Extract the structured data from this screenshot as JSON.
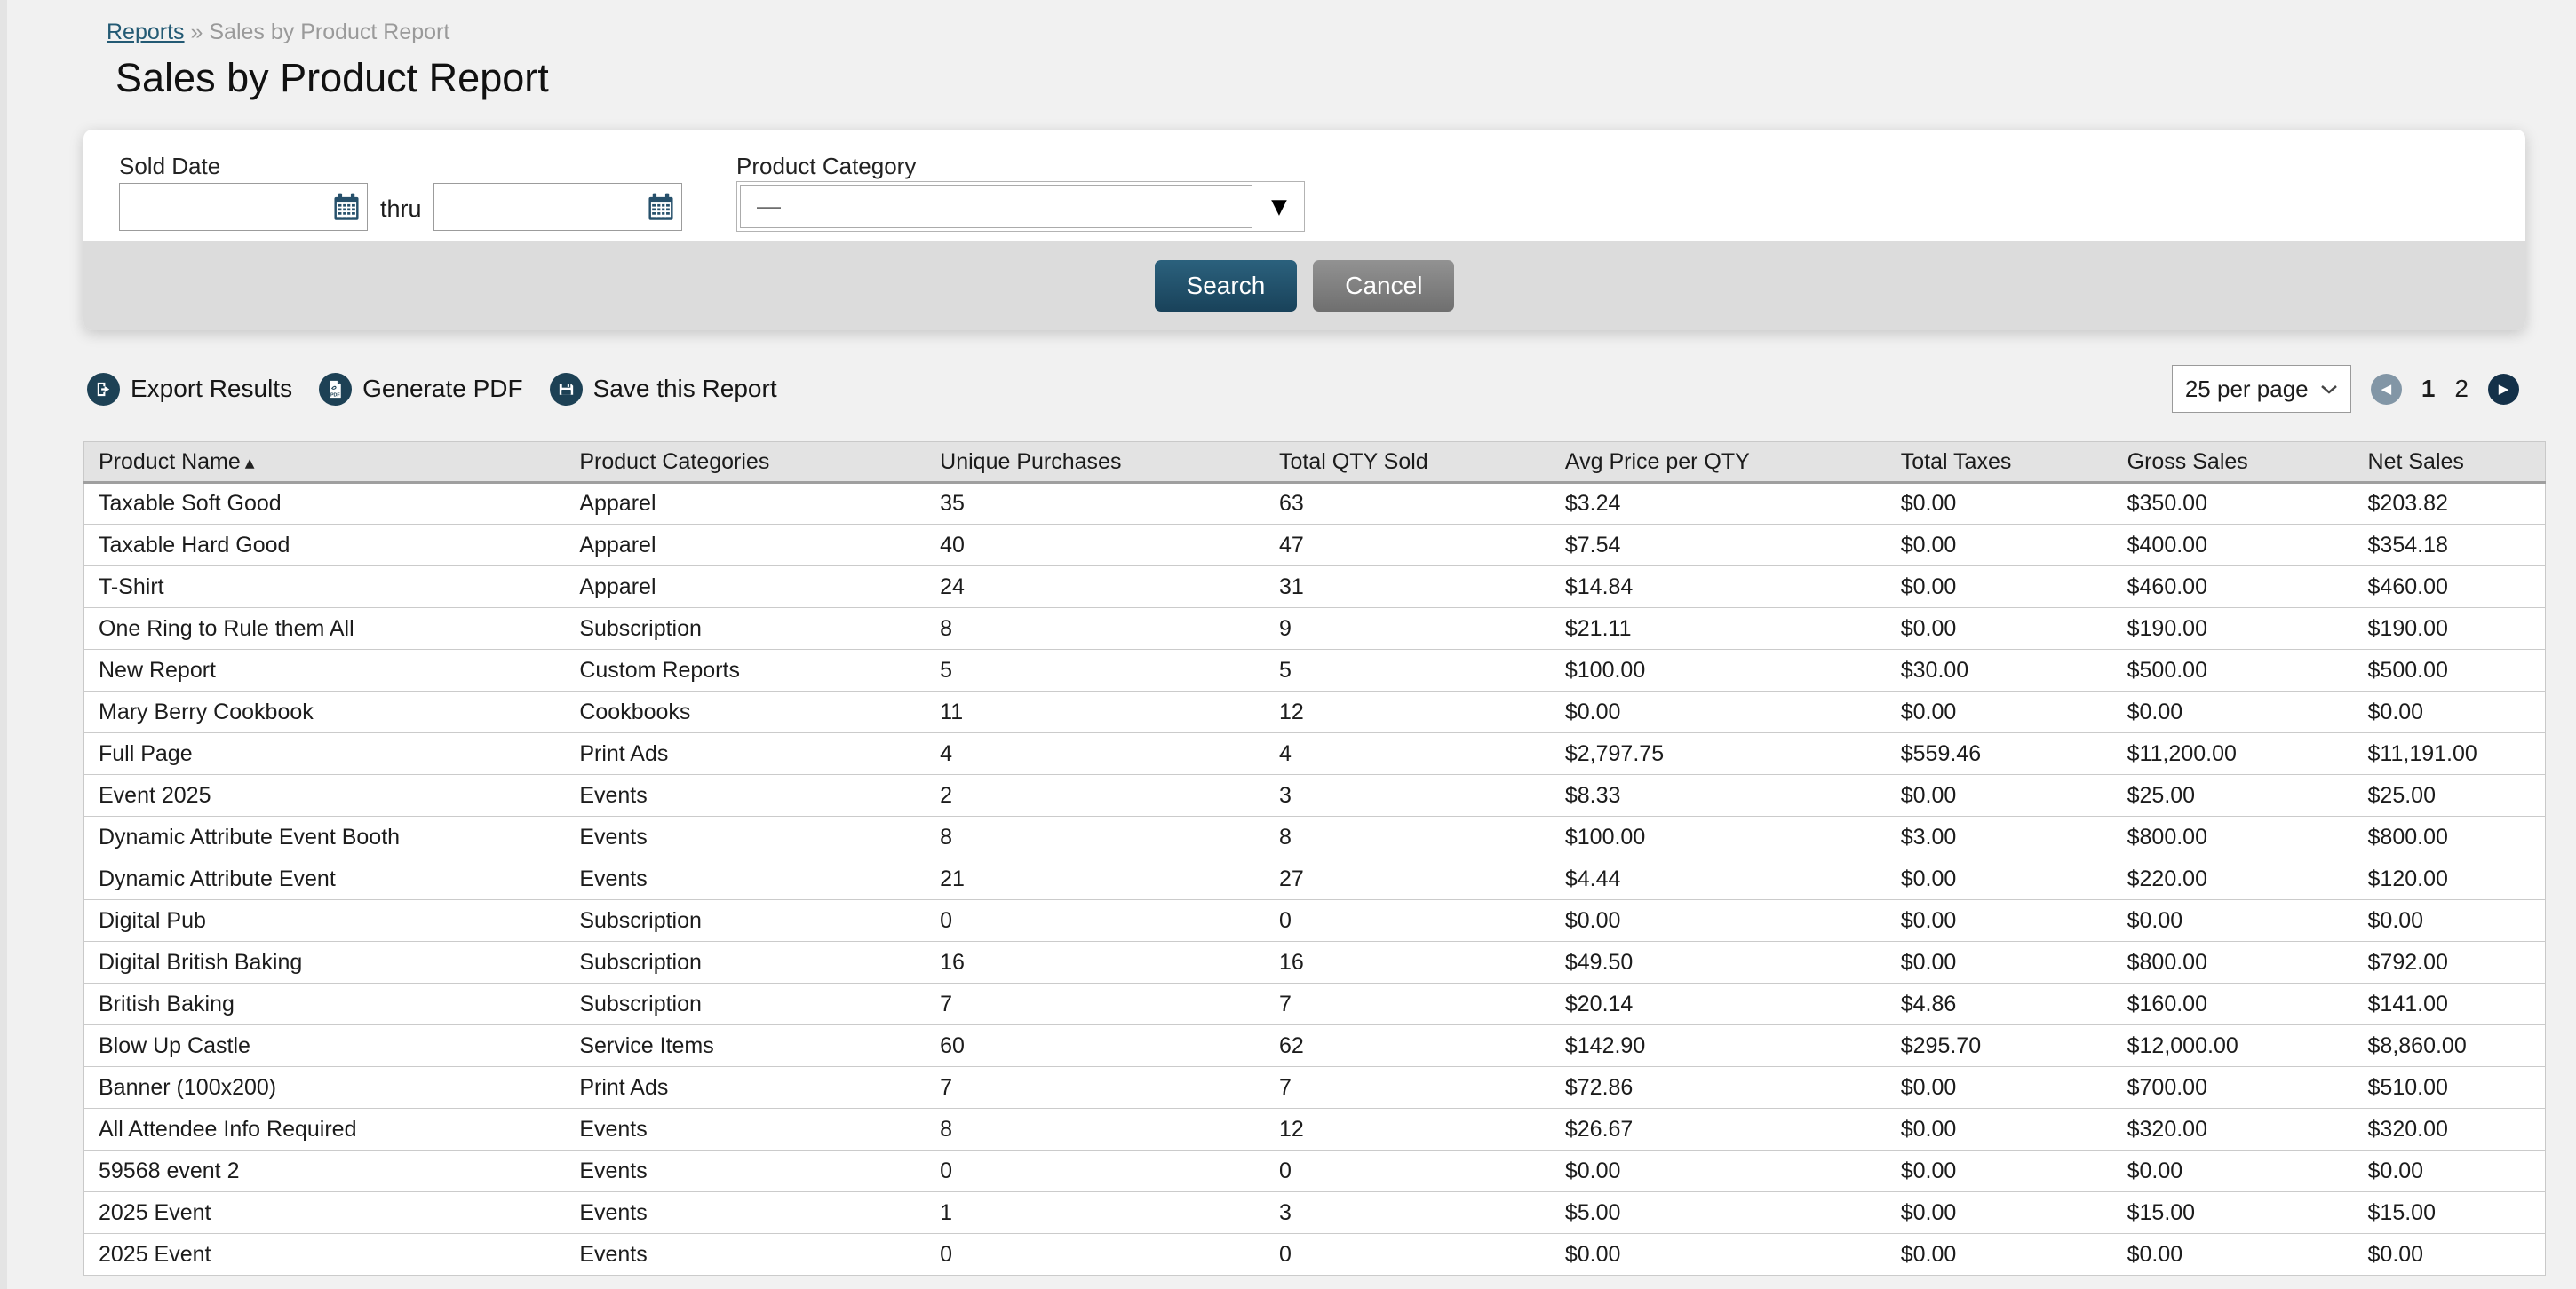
{
  "breadcrumb": {
    "link": "Reports",
    "separator": "»",
    "current": "Sales by Product Report"
  },
  "page": {
    "title": "Sales by Product Report"
  },
  "filters": {
    "sold_date": {
      "label": "Sold Date",
      "from_value": "",
      "thru_label": "thru",
      "to_value": ""
    },
    "product_category": {
      "label": "Product Category",
      "selected": "—"
    }
  },
  "actions": {
    "search_label": "Search",
    "cancel_label": "Cancel"
  },
  "toolbar": {
    "export_label": "Export Results",
    "generate_pdf_label": "Generate PDF",
    "save_label": "Save this Report"
  },
  "pagination": {
    "per_page": "25 per page",
    "pages": [
      "1",
      "2"
    ],
    "current_page": "1"
  },
  "icons": {
    "sort_asc": "▲",
    "dropdown_arrow": "▼",
    "prev_arrow": "◀",
    "next_arrow": "▶"
  },
  "colors": {
    "accent_navy": "#1d4155",
    "search_button": "#1f4e66",
    "cancel_button": "#7d7d7d",
    "page_background": "#f1f1f1",
    "panel_bar": "#dcdcdc",
    "header_background": "#e3e3e3"
  },
  "table": {
    "columns": [
      {
        "label": "Product Name",
        "sorted": "asc"
      },
      {
        "label": "Product Categories"
      },
      {
        "label": "Unique Purchases"
      },
      {
        "label": "Total QTY Sold"
      },
      {
        "label": "Avg Price per QTY"
      },
      {
        "label": "Total Taxes"
      },
      {
        "label": "Gross Sales"
      },
      {
        "label": "Net Sales"
      }
    ],
    "rows": [
      [
        "Taxable Soft Good",
        "Apparel",
        "35",
        "63",
        "$3.24",
        "$0.00",
        "$350.00",
        "$203.82"
      ],
      [
        "Taxable Hard Good",
        "Apparel",
        "40",
        "47",
        "$7.54",
        "$0.00",
        "$400.00",
        "$354.18"
      ],
      [
        "T-Shirt",
        "Apparel",
        "24",
        "31",
        "$14.84",
        "$0.00",
        "$460.00",
        "$460.00"
      ],
      [
        "One Ring to Rule them All",
        "Subscription",
        "8",
        "9",
        "$21.11",
        "$0.00",
        "$190.00",
        "$190.00"
      ],
      [
        "New Report",
        "Custom Reports",
        "5",
        "5",
        "$100.00",
        "$30.00",
        "$500.00",
        "$500.00"
      ],
      [
        "Mary Berry Cookbook",
        "Cookbooks",
        "11",
        "12",
        "$0.00",
        "$0.00",
        "$0.00",
        "$0.00"
      ],
      [
        "Full Page",
        "Print Ads",
        "4",
        "4",
        "$2,797.75",
        "$559.46",
        "$11,200.00",
        "$11,191.00"
      ],
      [
        "Event 2025",
        "Events",
        "2",
        "3",
        "$8.33",
        "$0.00",
        "$25.00",
        "$25.00"
      ],
      [
        "Dynamic Attribute Event Booth",
        "Events",
        "8",
        "8",
        "$100.00",
        "$3.00",
        "$800.00",
        "$800.00"
      ],
      [
        "Dynamic Attribute Event",
        "Events",
        "21",
        "27",
        "$4.44",
        "$0.00",
        "$220.00",
        "$120.00"
      ],
      [
        "Digital Pub",
        "Subscription",
        "0",
        "0",
        "$0.00",
        "$0.00",
        "$0.00",
        "$0.00"
      ],
      [
        "Digital British Baking",
        "Subscription",
        "16",
        "16",
        "$49.50",
        "$0.00",
        "$800.00",
        "$792.00"
      ],
      [
        "British Baking",
        "Subscription",
        "7",
        "7",
        "$20.14",
        "$4.86",
        "$160.00",
        "$141.00"
      ],
      [
        "Blow Up Castle",
        "Service Items",
        "60",
        "62",
        "$142.90",
        "$295.70",
        "$12,000.00",
        "$8,860.00"
      ],
      [
        "Banner (100x200)",
        "Print Ads",
        "7",
        "7",
        "$72.86",
        "$0.00",
        "$700.00",
        "$510.00"
      ],
      [
        "All Attendee Info Required",
        "Events",
        "8",
        "12",
        "$26.67",
        "$0.00",
        "$320.00",
        "$320.00"
      ],
      [
        "59568 event 2",
        "Events",
        "0",
        "0",
        "$0.00",
        "$0.00",
        "$0.00",
        "$0.00"
      ],
      [
        "2025 Event",
        "Events",
        "1",
        "3",
        "$5.00",
        "$0.00",
        "$15.00",
        "$15.00"
      ],
      [
        "2025 Event",
        "Events",
        "0",
        "0",
        "$0.00",
        "$0.00",
        "$0.00",
        "$0.00"
      ]
    ]
  }
}
